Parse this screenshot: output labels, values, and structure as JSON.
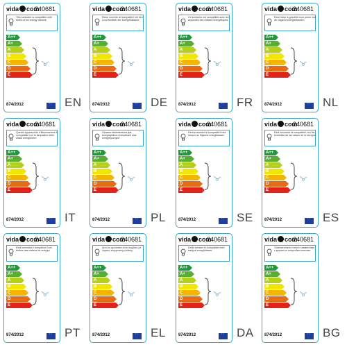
{
  "product_code": "240681",
  "brand": {
    "prefix": "vida",
    "suffix": "com"
  },
  "regulation": "874/2012",
  "classes": [
    {
      "text": "A++",
      "color": "#1e9a3a"
    },
    {
      "text": "A+",
      "color": "#55b030"
    },
    {
      "text": "A",
      "color": "#b6cf1b"
    },
    {
      "text": "B",
      "color": "#f2e500"
    },
    {
      "text": "C",
      "color": "#f5b400"
    },
    {
      "text": "D",
      "color": "#ea6a13"
    },
    {
      "text": "E",
      "color": "#e2231a"
    }
  ],
  "labels": [
    {
      "lang": "EN",
      "text": "This luminaire is compatible with bulbs of the energy classes:"
    },
    {
      "lang": "DE",
      "text": "Diese Leuchte ist kompatibel mit den Leuchtmitteln der Energieklassen:"
    },
    {
      "lang": "FR",
      "text": "Ce luminaire est compatible avec les ampoules des classes énergétiques:"
    },
    {
      "lang": "NL",
      "text": "Deze lamp is geschikt voor peren van de volgend energieklassen:"
    },
    {
      "lang": "IT",
      "text": "Questo apparecchio d'illuminazione è compatibile con le lampadine delle classi energetiche:"
    },
    {
      "lang": "PL",
      "text": "Oprawa oświetleniowa jest kompatybilna z żarówkami klas energetycznych:"
    },
    {
      "lang": "SE",
      "text": "Denna armatur är kompatibel med lampor av följande energiklasser:"
    },
    {
      "lang": "ES",
      "text": "Esta luminaria es compatible con las bombillas de las clases de la energía:"
    },
    {
      "lang": "PT",
      "text": "Esta luminária é compatível com bulbos das classes de energia:"
    },
    {
      "lang": "EL",
      "text": "Αυτό το φωτιστικό είναι συμβατό με λάμπες ενεργειακής κλάσης:"
    },
    {
      "lang": "DA",
      "text": "Dette armatur er kompatibel med bælg af energiklasser:"
    },
    {
      "lang": "BG",
      "text": "Осветителното тяло е съвместимо с крушки от енергийни класове:"
    }
  ]
}
